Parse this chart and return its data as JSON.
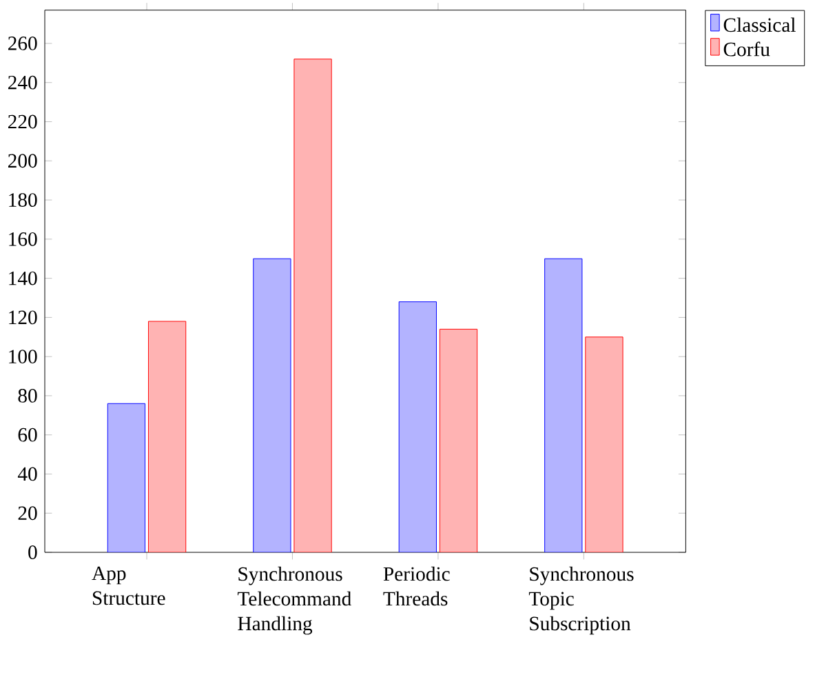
{
  "chart_data": {
    "type": "bar",
    "categories": [
      "App Structure",
      "Synchronous Telecommand Handling",
      "Periodic Threads",
      "Synchronous Topic Subscription"
    ],
    "series": [
      {
        "name": "Classical",
        "color": "#b3b3ff",
        "values": [
          76,
          150,
          128,
          150
        ]
      },
      {
        "name": "Corfu",
        "color": "#ffb3b3",
        "values": [
          118,
          252,
          114,
          110
        ]
      }
    ],
    "ylim": [
      0,
      277
    ],
    "yticks": [
      0,
      20,
      40,
      60,
      80,
      100,
      120,
      140,
      160,
      180,
      200,
      220,
      240,
      260
    ],
    "legend": "top right",
    "grid": false
  }
}
